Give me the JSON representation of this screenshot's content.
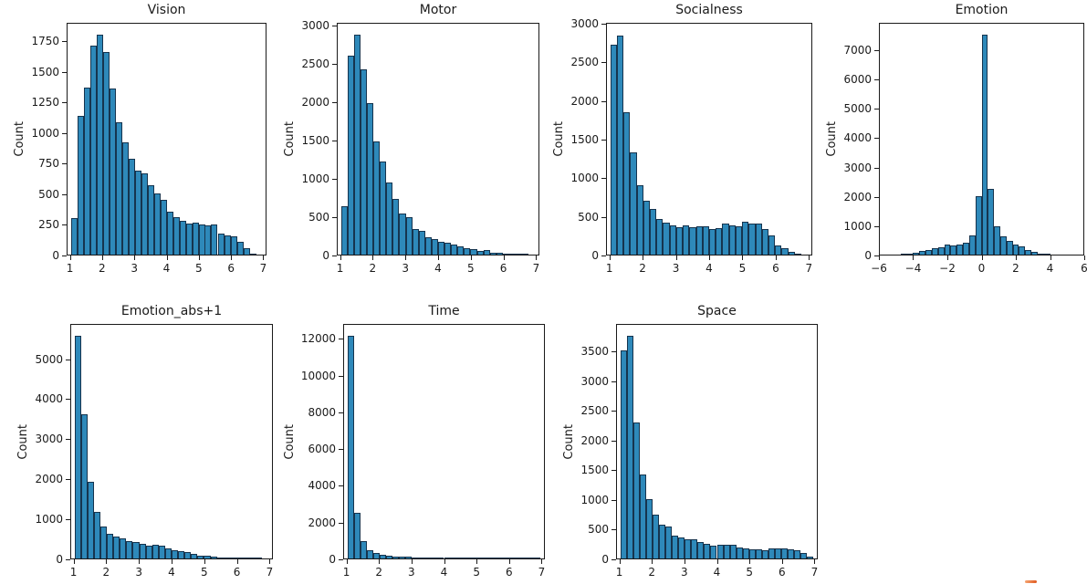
{
  "colors": {
    "bar_fill": "#2e89ba",
    "bar_edge": "#16344e",
    "axis": "#1a1a1a",
    "background": "#ffffff",
    "artifact_orange_light": "#f5a571",
    "artifact_orange_dark": "#e05a20"
  },
  "artifact": {
    "description": "small orange dash at bottom-right edge"
  },
  "chart_data": [
    {
      "type": "bar",
      "subtype": "histogram",
      "title": "Vision",
      "ylabel": "Count",
      "xlabel": "",
      "grid": false,
      "legend": null,
      "xlim": [
        0.9,
        7.1
      ],
      "ylim": [
        0,
        1900
      ],
      "xticks": [
        1,
        2,
        3,
        4,
        5,
        6,
        7
      ],
      "xtick_labels": [
        "1",
        "2",
        "3",
        "4",
        "5",
        "6",
        "7"
      ],
      "yticks": [
        0,
        250,
        500,
        750,
        1000,
        1250,
        1500,
        1750
      ],
      "ytick_labels": [
        "0",
        "250",
        "500",
        "750",
        "1000",
        "1250",
        "1500",
        "1750"
      ],
      "bin_start": 1.0,
      "bin_width": 0.2,
      "counts": [
        300,
        1145,
        1375,
        1720,
        1810,
        1670,
        1370,
        1090,
        925,
        790,
        690,
        670,
        570,
        500,
        450,
        355,
        310,
        280,
        255,
        260,
        245,
        240,
        245,
        175,
        155,
        150,
        105,
        55,
        8
      ]
    },
    {
      "type": "bar",
      "subtype": "histogram",
      "title": "Motor",
      "ylabel": "Count",
      "xlabel": "",
      "grid": false,
      "legend": null,
      "xlim": [
        0.9,
        7.1
      ],
      "ylim": [
        0,
        3035
      ],
      "xticks": [
        1,
        2,
        3,
        4,
        5,
        6,
        7
      ],
      "xtick_labels": [
        "1",
        "2",
        "3",
        "4",
        "5",
        "6",
        "7"
      ],
      "yticks": [
        0,
        500,
        1000,
        1500,
        2000,
        2500,
        3000
      ],
      "ytick_labels": [
        "0",
        "500",
        "1000",
        "1500",
        "2000",
        "2500",
        "3000"
      ],
      "bin_start": 1.0,
      "bin_width": 0.2,
      "counts": [
        640,
        2620,
        2890,
        2430,
        1990,
        1490,
        1220,
        950,
        730,
        545,
        490,
        340,
        310,
        225,
        205,
        165,
        155,
        130,
        105,
        85,
        70,
        45,
        55,
        30,
        30,
        15,
        10,
        8,
        5
      ]
    },
    {
      "type": "bar",
      "subtype": "histogram",
      "title": "Socialness",
      "ylabel": "Count",
      "xlabel": "",
      "grid": false,
      "legend": null,
      "xlim": [
        0.9,
        7.1
      ],
      "ylim": [
        0,
        3010
      ],
      "xticks": [
        1,
        2,
        3,
        4,
        5,
        6,
        7
      ],
      "xtick_labels": [
        "1",
        "2",
        "3",
        "4",
        "5",
        "6",
        "7"
      ],
      "yticks": [
        0,
        500,
        1000,
        1500,
        2000,
        2500,
        3000
      ],
      "ytick_labels": [
        "0",
        "500",
        "1000",
        "1500",
        "2000",
        "2500",
        "3000"
      ],
      "bin_start": 1.0,
      "bin_width": 0.2,
      "counts": [
        2740,
        2860,
        1860,
        1330,
        905,
        700,
        590,
        460,
        415,
        385,
        360,
        375,
        355,
        365,
        365,
        335,
        350,
        400,
        375,
        370,
        425,
        400,
        405,
        330,
        255,
        120,
        85,
        30,
        8
      ]
    },
    {
      "type": "bar",
      "subtype": "histogram",
      "title": "Emotion",
      "ylabel": "Count",
      "xlabel": "",
      "grid": false,
      "legend": null,
      "xlim": [
        -6,
        6
      ],
      "ylim": [
        0,
        7930
      ],
      "xticks": [
        -6,
        -4,
        -2,
        0,
        2,
        4,
        6
      ],
      "xtick_labels": [
        "−6",
        "−4",
        "−2",
        "0",
        "2",
        "4",
        "6"
      ],
      "yticks": [
        0,
        1000,
        2000,
        3000,
        4000,
        5000,
        6000,
        7000
      ],
      "ytick_labels": [
        "0",
        "1000",
        "2000",
        "3000",
        "4000",
        "5000",
        "6000",
        "7000"
      ],
      "bin_start": -4.77,
      "bin_width": 0.367,
      "counts": [
        20,
        45,
        75,
        115,
        165,
        230,
        255,
        330,
        305,
        330,
        420,
        650,
        2020,
        7550,
        2250,
        980,
        640,
        460,
        340,
        290,
        170,
        90,
        40,
        15
      ]
    },
    {
      "type": "bar",
      "subtype": "histogram",
      "title": "Emotion_abs+1",
      "ylabel": "Count",
      "xlabel": "",
      "grid": false,
      "legend": null,
      "xlim": [
        0.9,
        7.1
      ],
      "ylim": [
        0,
        5880
      ],
      "xticks": [
        1,
        2,
        3,
        4,
        5,
        6,
        7
      ],
      "xtick_labels": [
        "1",
        "2",
        "3",
        "4",
        "5",
        "6",
        "7"
      ],
      "yticks": [
        0,
        1000,
        2000,
        3000,
        4000,
        5000
      ],
      "ytick_labels": [
        "0",
        "1000",
        "2000",
        "3000",
        "4000",
        "5000"
      ],
      "bin_start": 1.0,
      "bin_width": 0.2,
      "counts": [
        5600,
        3620,
        1920,
        1170,
        810,
        620,
        545,
        495,
        430,
        410,
        360,
        330,
        345,
        330,
        250,
        205,
        185,
        150,
        110,
        80,
        75,
        40,
        30,
        30,
        15,
        10,
        8,
        5,
        3
      ]
    },
    {
      "type": "bar",
      "subtype": "histogram",
      "title": "Time",
      "ylabel": "Count",
      "xlabel": "",
      "grid": false,
      "legend": null,
      "xlim": [
        0.9,
        7.1
      ],
      "ylim": [
        0,
        12810
      ],
      "xticks": [
        1,
        2,
        3,
        4,
        5,
        6,
        7
      ],
      "xtick_labels": [
        "1",
        "2",
        "3",
        "4",
        "5",
        "6",
        "7"
      ],
      "yticks": [
        0,
        2000,
        4000,
        6000,
        8000,
        10000,
        12000
      ],
      "ytick_labels": [
        "0",
        "2000",
        "4000",
        "6000",
        "8000",
        "10000",
        "12000"
      ],
      "bin_start": 1.0,
      "bin_width": 0.2,
      "counts": [
        12200,
        2480,
        930,
        460,
        290,
        180,
        130,
        110,
        90,
        80,
        60,
        55,
        45,
        40,
        50,
        35,
        25,
        20,
        20,
        25,
        25,
        20,
        25,
        30,
        25,
        40,
        55,
        65,
        50,
        25
      ]
    },
    {
      "type": "bar",
      "subtype": "histogram",
      "title": "Space",
      "ylabel": "Count",
      "xlabel": "",
      "grid": false,
      "legend": null,
      "xlim": [
        0.9,
        7.1
      ],
      "ylim": [
        0,
        3960
      ],
      "xticks": [
        1,
        2,
        3,
        4,
        5,
        6,
        7
      ],
      "xtick_labels": [
        "1",
        "2",
        "3",
        "4",
        "5",
        "6",
        "7"
      ],
      "yticks": [
        0,
        500,
        1000,
        1500,
        2000,
        2500,
        3000,
        3500
      ],
      "ytick_labels": [
        "0",
        "500",
        "1000",
        "1500",
        "2000",
        "2500",
        "3000",
        "3500"
      ],
      "bin_start": 1.0,
      "bin_width": 0.2,
      "counts": [
        3520,
        3770,
        2310,
        1430,
        1000,
        745,
        580,
        545,
        380,
        355,
        330,
        320,
        280,
        250,
        210,
        230,
        230,
        225,
        190,
        175,
        160,
        160,
        140,
        175,
        175,
        165,
        155,
        140,
        90,
        25
      ]
    }
  ]
}
